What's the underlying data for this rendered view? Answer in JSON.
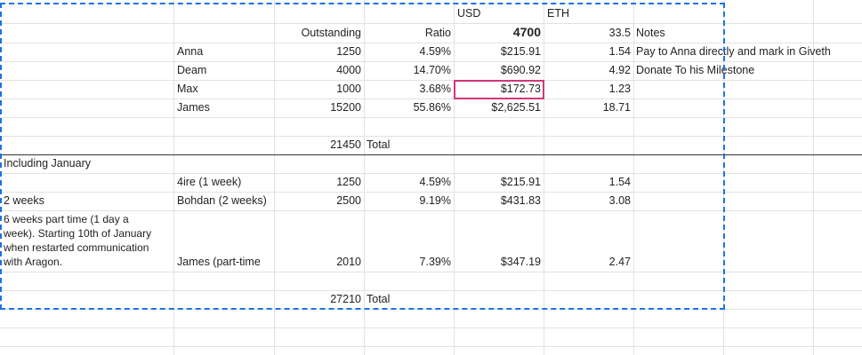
{
  "header": {
    "usd": "USD",
    "eth": "ETH",
    "outstanding": "Outstanding",
    "ratio": "Ratio",
    "total_usd": "4700",
    "total_eth": "33.5",
    "notes": "Notes"
  },
  "rows1": [
    {
      "name": "Anna",
      "outstanding": "1250",
      "ratio": "4.59%",
      "usd": "$215.91",
      "eth": "1.54",
      "note": "Pay to Anna directly and mark in Giveth"
    },
    {
      "name": "Deam",
      "outstanding": "4000",
      "ratio": "14.70%",
      "usd": "$690.92",
      "eth": "4.92",
      "note": "Donate To his Milestone"
    },
    {
      "name": "Max",
      "outstanding": "1000",
      "ratio": "3.68%",
      "usd": "$172.73",
      "eth": "1.23",
      "note": ""
    },
    {
      "name": "James",
      "outstanding": "15200",
      "ratio": "55.86%",
      "usd": "$2,625.51",
      "eth": "18.71",
      "note": ""
    }
  ],
  "total1": {
    "value": "21450",
    "label": "Total"
  },
  "section2": {
    "heading": "Including January"
  },
  "rows2": [
    {
      "desc": "",
      "name": "4ire (1 week)",
      "outstanding": "1250",
      "ratio": "4.59%",
      "usd": "$215.91",
      "eth": "1.54"
    },
    {
      "desc": "2 weeks",
      "name": "Bohdan (2 weeks)",
      "outstanding": "2500",
      "ratio": "9.19%",
      "usd": "$431.83",
      "eth": "3.08"
    },
    {
      "desc": "6 weeks part time (1 day a week). Starting 10th of January when restarted communication with Aragon.",
      "name": "James (part-time",
      "outstanding": "2010",
      "ratio": "7.39%",
      "usd": "$347.19",
      "eth": "2.47"
    }
  ],
  "total2": {
    "value": "27210",
    "label": "Total"
  },
  "colors": {
    "selection": "#d0367a",
    "marquee": "#1a73e8",
    "gridline": "#e2e2e2"
  }
}
